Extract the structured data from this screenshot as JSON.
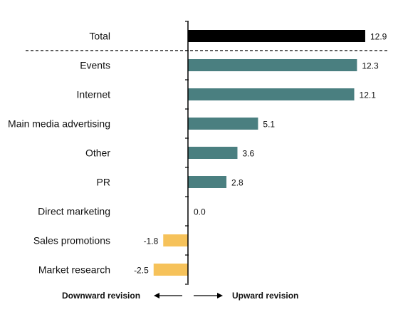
{
  "chart_data": {
    "type": "bar",
    "orientation": "horizontal",
    "categories": [
      "Total",
      "Events",
      "Internet",
      "Main media advertising",
      "Other",
      "PR",
      "Direct marketing",
      "Sales promotions",
      "Market research"
    ],
    "values": [
      12.9,
      12.3,
      12.1,
      5.1,
      3.6,
      2.8,
      0.0,
      -1.8,
      -2.5
    ],
    "value_labels": [
      "12.9",
      "12.3",
      "12.1",
      "5.1",
      "3.6",
      "2.8",
      "0.0",
      "-1.8",
      "-2.5"
    ],
    "xlim": [
      -3.0,
      12.9
    ],
    "grid": false,
    "legend": "none",
    "footer": {
      "left_label": "Downward revision",
      "right_label": "Upward revision"
    },
    "colors": {
      "total": "#000000",
      "positive": "#4a7f80",
      "negative": "#f6c25a"
    }
  }
}
